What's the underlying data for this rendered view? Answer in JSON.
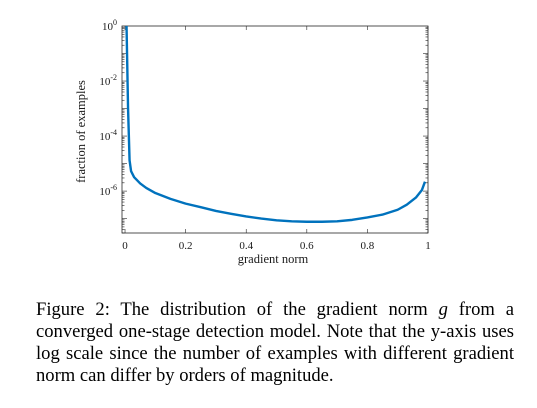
{
  "chart_data": {
    "type": "line",
    "title": "",
    "xlabel": "gradient norm",
    "ylabel": "fraction of examples",
    "xlim": [
      -0.01,
      1.0
    ],
    "ylim": [
      3e-08,
      1
    ],
    "yscale": "log",
    "grid": false,
    "legend": "none",
    "line_color": "#0072BD",
    "x_ticks": [
      {
        "value": 0,
        "label": "0"
      },
      {
        "value": 0.2,
        "label": "0.2"
      },
      {
        "value": 0.4,
        "label": "0.4"
      },
      {
        "value": 0.6,
        "label": "0.6"
      },
      {
        "value": 0.8,
        "label": "0.8"
      },
      {
        "value": 1,
        "label": "1"
      }
    ],
    "y_ticks": [
      {
        "value": 1,
        "base": "10",
        "exp": "0"
      },
      {
        "value": 0.01,
        "base": "10",
        "exp": "-2"
      },
      {
        "value": 0.0001,
        "base": "10",
        "exp": "-4"
      },
      {
        "value": 1e-06,
        "base": "10",
        "exp": "-6"
      }
    ],
    "series": [
      {
        "x": [
          0.005,
          0.01,
          0.015,
          0.02,
          0.03,
          0.05,
          0.07,
          0.1,
          0.15,
          0.2,
          0.25,
          0.3,
          0.35,
          0.4,
          0.45,
          0.5,
          0.55,
          0.6,
          0.65,
          0.7,
          0.75,
          0.8,
          0.85,
          0.9,
          0.93,
          0.96,
          0.98,
          0.99
        ],
        "y": [
          1.0,
          0.001,
          1.3e-05,
          5.3e-06,
          3.2e-06,
          1.9e-06,
          1.3e-06,
          8.5e-07,
          5.2e-07,
          3.5e-07,
          2.6e-07,
          1.9e-07,
          1.5e-07,
          1.2e-07,
          1e-07,
          8.7e-08,
          8e-08,
          7.7e-08,
          7.7e-08,
          8e-08,
          9e-08,
          1.1e-07,
          1.4e-07,
          2.1e-07,
          3.2e-07,
          5.8e-07,
          1.1e-06,
          2.2e-06
        ]
      }
    ]
  },
  "caption": {
    "part1": "Figure 2: The distribution of the gradient norm ",
    "var": "g",
    "part2": " from a converged one-stage detection model. Note that the y-axis uses log scale since the number of examples with different gradient norm can differ by orders of magnitude."
  }
}
